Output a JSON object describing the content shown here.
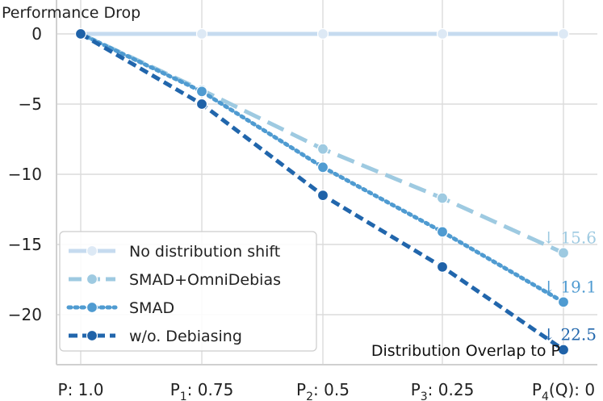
{
  "chart_data": {
    "type": "line",
    "ylabel": "Performance Drop",
    "xlabel": "Distribution Overlap to P",
    "ylim": [
      -23,
      1.5
    ],
    "yticks": [
      0,
      -5,
      -10,
      -15,
      -20
    ],
    "ytick_labels": [
      "0",
      "−5",
      "−10",
      "−15",
      "−20"
    ],
    "categories": [
      {
        "main": "P: 1.0",
        "sub": ""
      },
      {
        "main": "P",
        "sub": "1",
        "rest": ": 0.75"
      },
      {
        "main": "P",
        "sub": "2",
        "rest": ": 0.5"
      },
      {
        "main": "P",
        "sub": "3",
        "rest": ": 0.25"
      },
      {
        "main": "P",
        "sub": "4",
        "rest": "(Q): 0"
      }
    ],
    "grid": true,
    "legend_position": "lower-left",
    "series": [
      {
        "name": "No distribution shift",
        "values": [
          0,
          0,
          0,
          0,
          0
        ],
        "color": "#c6dbef",
        "dash": "solid",
        "marker_color": "#dde9f5"
      },
      {
        "name": "SMAD+OmniDebias",
        "values": [
          0,
          -4.0,
          -8.2,
          -11.7,
          -15.6
        ],
        "color": "#9ecae1",
        "dash": "long",
        "marker_color": "#9ecae1",
        "annotation": "↓ 15.6"
      },
      {
        "name": "SMAD",
        "values": [
          0,
          -4.1,
          -9.5,
          -14.1,
          -19.1
        ],
        "color": "#4f9bd1",
        "dash": "dot",
        "marker_color": "#4f9bd1",
        "annotation": "↓ 19.1"
      },
      {
        "name": "w/o. Debiasing",
        "values": [
          0,
          -5.0,
          -11.5,
          -16.6,
          -22.5
        ],
        "color": "#2166ac",
        "dash": "dash",
        "marker_color": "#1f62a8",
        "annotation": "↓ 22.5"
      }
    ]
  }
}
